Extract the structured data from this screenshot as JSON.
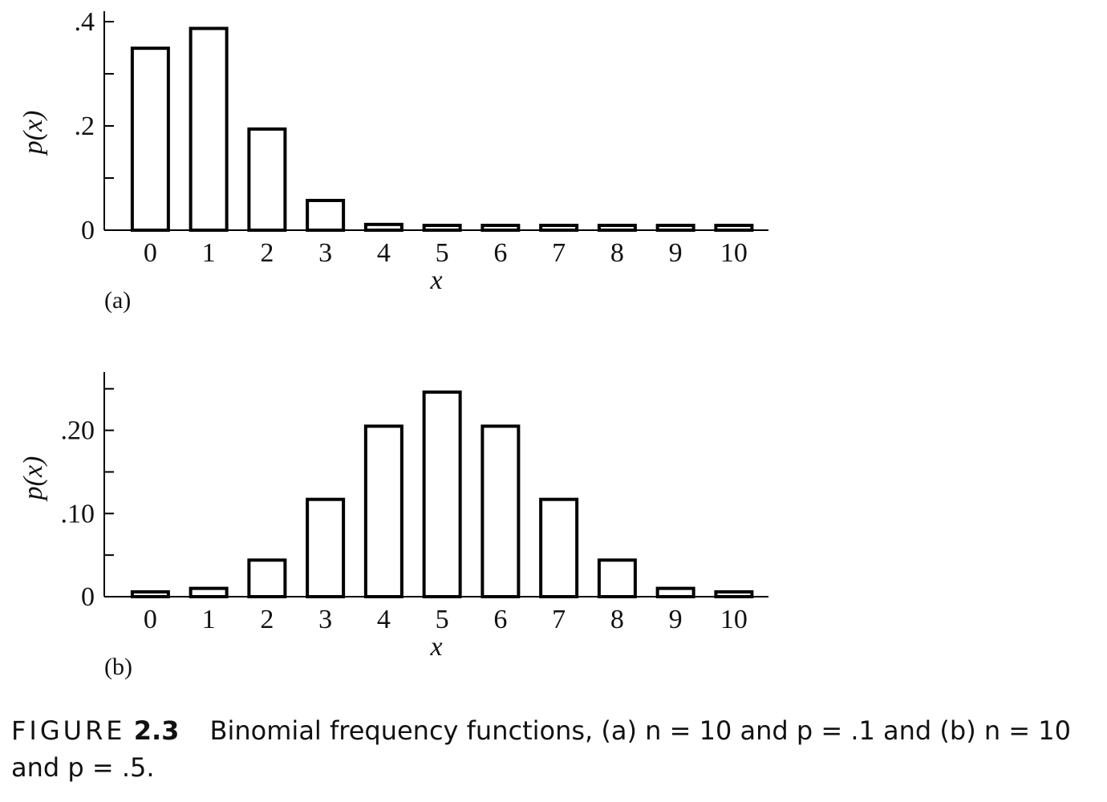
{
  "caption": {
    "label": "FIGURE",
    "number": "2.3",
    "text": "Binomial frequency functions, (a) n = 10 and p = .1 and (b) n = 10 and p = .5."
  },
  "chart_data": [
    {
      "type": "bar",
      "panel_label": "(a)",
      "xlabel": "x",
      "ylabel": "p(x)",
      "categories": [
        "0",
        "1",
        "2",
        "3",
        "4",
        "5",
        "6",
        "7",
        "8",
        "9",
        "10"
      ],
      "values": [
        0.349,
        0.387,
        0.194,
        0.057,
        0.011,
        0.0015,
        0.0001,
        0.0,
        0.0,
        0.0,
        0.0
      ],
      "ylim": [
        0,
        0.42
      ],
      "yticks": [
        0,
        0.1,
        0.2,
        0.3,
        0.4
      ],
      "ytick_labels": [
        "0",
        "",
        ".2",
        "",
        ".4"
      ]
    },
    {
      "type": "bar",
      "panel_label": "(b)",
      "xlabel": "x",
      "ylabel": "p(x)",
      "categories": [
        "0",
        "1",
        "2",
        "3",
        "4",
        "5",
        "6",
        "7",
        "8",
        "9",
        "10"
      ],
      "values": [
        0.001,
        0.01,
        0.044,
        0.117,
        0.205,
        0.246,
        0.205,
        0.117,
        0.044,
        0.01,
        0.001
      ],
      "ylim": [
        0,
        0.27
      ],
      "yticks": [
        0,
        0.05,
        0.1,
        0.15,
        0.2,
        0.25
      ],
      "ytick_labels": [
        "0",
        "",
        ".10",
        "",
        ".20",
        ""
      ]
    }
  ]
}
